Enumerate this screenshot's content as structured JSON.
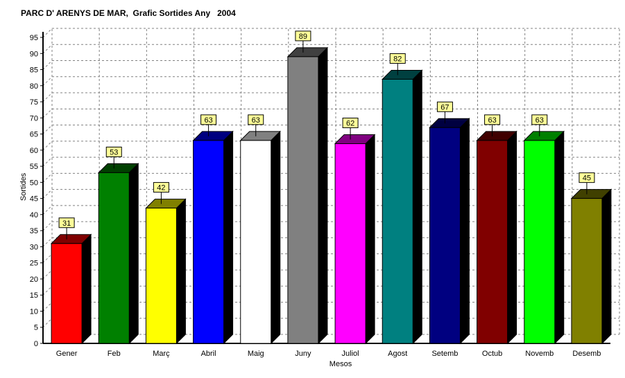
{
  "chart_data": {
    "type": "bar",
    "title": "PARC D' ARENYS DE MAR,  Grafic Sortides Any   2004",
    "xlabel": "Mesos",
    "ylabel": "Sortides",
    "ylim": [
      0,
      95
    ],
    "ytick_step": 5,
    "grid": true,
    "legend": "none",
    "categories": [
      "Gener",
      "Feb",
      "Març",
      "Abril",
      "Maig",
      "Juny",
      "Juliol",
      "Agost",
      "Setemb",
      "Octub",
      "Novemb",
      "Desemb"
    ],
    "values": [
      31,
      53,
      42,
      63,
      63,
      89,
      62,
      82,
      67,
      63,
      63,
      45
    ],
    "colors": [
      "#ff0000",
      "#008000",
      "#ffff00",
      "#0000ff",
      "#ffffff",
      "#808080",
      "#ff00ff",
      "#008080",
      "#000080",
      "#800000",
      "#00ff00",
      "#808000"
    ],
    "data_label_background": "#ffff99"
  }
}
